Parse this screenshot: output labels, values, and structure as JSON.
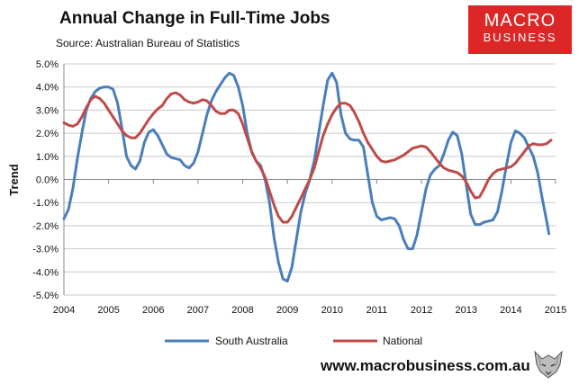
{
  "header": {
    "title": "Annual Change in Full-Time Jobs",
    "source": "Source: Australian Bureau of Statistics"
  },
  "logo": {
    "line1": "MACRO",
    "line2": "BUSINESS",
    "color": "#dd2727"
  },
  "footer": {
    "url": "www.macrobusiness.com.au",
    "mascot_icon": "wolf-icon"
  },
  "chart_data": {
    "type": "line",
    "title": "Annual Change in Full-Time Jobs",
    "xlabel": "",
    "ylabel": "Trend",
    "xlim": [
      2004,
      2015
    ],
    "ylim": [
      -5.0,
      5.0
    ],
    "x_ticks": [
      "2004",
      "2005",
      "2006",
      "2007",
      "2008",
      "2009",
      "2010",
      "2011",
      "2012",
      "2013",
      "2014",
      "2015"
    ],
    "y_ticks": [
      "5.0%",
      "4.0%",
      "3.0%",
      "2.0%",
      "1.0%",
      "0.0%",
      "-1.0%",
      "-2.0%",
      "-3.0%",
      "-4.0%",
      "-5.0%"
    ],
    "grid": "horizontal",
    "legend": "bottom",
    "series": [
      {
        "name": "South Australia",
        "color": "#4a7ebb",
        "points": [
          [
            2004.0,
            -1.7
          ],
          [
            2004.1,
            -1.3
          ],
          [
            2004.2,
            -0.4
          ],
          [
            2004.3,
            0.9
          ],
          [
            2004.4,
            2.0
          ],
          [
            2004.5,
            3.0
          ],
          [
            2004.6,
            3.5
          ],
          [
            2004.7,
            3.8
          ],
          [
            2004.8,
            3.95
          ],
          [
            2004.9,
            4.0
          ],
          [
            2005.0,
            4.0
          ],
          [
            2005.1,
            3.9
          ],
          [
            2005.2,
            3.3
          ],
          [
            2005.3,
            2.2
          ],
          [
            2005.4,
            1.0
          ],
          [
            2005.5,
            0.6
          ],
          [
            2005.6,
            0.45
          ],
          [
            2005.7,
            0.8
          ],
          [
            2005.8,
            1.6
          ],
          [
            2005.9,
            2.05
          ],
          [
            2006.0,
            2.15
          ],
          [
            2006.1,
            1.9
          ],
          [
            2006.2,
            1.5
          ],
          [
            2006.3,
            1.1
          ],
          [
            2006.4,
            0.95
          ],
          [
            2006.5,
            0.9
          ],
          [
            2006.6,
            0.85
          ],
          [
            2006.7,
            0.6
          ],
          [
            2006.8,
            0.5
          ],
          [
            2006.9,
            0.7
          ],
          [
            2007.0,
            1.2
          ],
          [
            2007.1,
            2.0
          ],
          [
            2007.2,
            2.8
          ],
          [
            2007.3,
            3.4
          ],
          [
            2007.4,
            3.8
          ],
          [
            2007.5,
            4.1
          ],
          [
            2007.6,
            4.4
          ],
          [
            2007.7,
            4.6
          ],
          [
            2007.8,
            4.5
          ],
          [
            2007.9,
            4.0
          ],
          [
            2008.0,
            3.2
          ],
          [
            2008.1,
            2.0
          ],
          [
            2008.2,
            1.2
          ],
          [
            2008.3,
            0.8
          ],
          [
            2008.4,
            0.6
          ],
          [
            2008.5,
            0.0
          ],
          [
            2008.6,
            -1.0
          ],
          [
            2008.7,
            -2.5
          ],
          [
            2008.8,
            -3.6
          ],
          [
            2008.9,
            -4.3
          ],
          [
            2009.0,
            -4.4
          ],
          [
            2009.1,
            -3.8
          ],
          [
            2009.2,
            -2.6
          ],
          [
            2009.3,
            -1.4
          ],
          [
            2009.4,
            -0.6
          ],
          [
            2009.5,
            0.0
          ],
          [
            2009.6,
            0.8
          ],
          [
            2009.7,
            2.0
          ],
          [
            2009.8,
            3.2
          ],
          [
            2009.9,
            4.3
          ],
          [
            2010.0,
            4.6
          ],
          [
            2010.1,
            4.2
          ],
          [
            2010.2,
            2.8
          ],
          [
            2010.3,
            2.0
          ],
          [
            2010.4,
            1.75
          ],
          [
            2010.5,
            1.7
          ],
          [
            2010.6,
            1.7
          ],
          [
            2010.7,
            1.4
          ],
          [
            2010.8,
            0.2
          ],
          [
            2010.9,
            -1.0
          ],
          [
            2011.0,
            -1.6
          ],
          [
            2011.1,
            -1.75
          ],
          [
            2011.2,
            -1.7
          ],
          [
            2011.3,
            -1.65
          ],
          [
            2011.4,
            -1.7
          ],
          [
            2011.5,
            -2.0
          ],
          [
            2011.6,
            -2.6
          ],
          [
            2011.7,
            -3.0
          ],
          [
            2011.8,
            -3.0
          ],
          [
            2011.9,
            -2.4
          ],
          [
            2012.0,
            -1.4
          ],
          [
            2012.1,
            -0.4
          ],
          [
            2012.2,
            0.2
          ],
          [
            2012.3,
            0.45
          ],
          [
            2012.4,
            0.6
          ],
          [
            2012.5,
            1.1
          ],
          [
            2012.6,
            1.7
          ],
          [
            2012.7,
            2.05
          ],
          [
            2012.8,
            1.9
          ],
          [
            2012.9,
            1.1
          ],
          [
            2013.0,
            -0.2
          ],
          [
            2013.1,
            -1.5
          ],
          [
            2013.2,
            -1.95
          ],
          [
            2013.3,
            -1.95
          ],
          [
            2013.4,
            -1.85
          ],
          [
            2013.5,
            -1.8
          ],
          [
            2013.6,
            -1.75
          ],
          [
            2013.7,
            -1.4
          ],
          [
            2013.8,
            -0.5
          ],
          [
            2013.9,
            0.6
          ],
          [
            2014.0,
            1.6
          ],
          [
            2014.1,
            2.1
          ],
          [
            2014.2,
            2.0
          ],
          [
            2014.3,
            1.8
          ],
          [
            2014.4,
            1.4
          ],
          [
            2014.5,
            1.0
          ],
          [
            2014.6,
            0.3
          ],
          [
            2014.7,
            -0.8
          ],
          [
            2014.8,
            -1.8
          ],
          [
            2014.85,
            -2.35
          ]
        ]
      },
      {
        "name": "National",
        "color": "#be4b48",
        "points": [
          [
            2004.0,
            2.45
          ],
          [
            2004.1,
            2.35
          ],
          [
            2004.2,
            2.3
          ],
          [
            2004.3,
            2.4
          ],
          [
            2004.4,
            2.7
          ],
          [
            2004.5,
            3.1
          ],
          [
            2004.6,
            3.45
          ],
          [
            2004.7,
            3.6
          ],
          [
            2004.8,
            3.5
          ],
          [
            2004.9,
            3.3
          ],
          [
            2005.0,
            3.0
          ],
          [
            2005.1,
            2.7
          ],
          [
            2005.2,
            2.4
          ],
          [
            2005.3,
            2.1
          ],
          [
            2005.4,
            1.9
          ],
          [
            2005.5,
            1.8
          ],
          [
            2005.6,
            1.8
          ],
          [
            2005.7,
            2.0
          ],
          [
            2005.8,
            2.3
          ],
          [
            2005.9,
            2.6
          ],
          [
            2006.0,
            2.85
          ],
          [
            2006.1,
            3.05
          ],
          [
            2006.2,
            3.2
          ],
          [
            2006.3,
            3.5
          ],
          [
            2006.4,
            3.7
          ],
          [
            2006.5,
            3.75
          ],
          [
            2006.6,
            3.65
          ],
          [
            2006.7,
            3.45
          ],
          [
            2006.8,
            3.35
          ],
          [
            2006.9,
            3.3
          ],
          [
            2007.0,
            3.35
          ],
          [
            2007.1,
            3.45
          ],
          [
            2007.2,
            3.4
          ],
          [
            2007.3,
            3.2
          ],
          [
            2007.4,
            2.95
          ],
          [
            2007.5,
            2.85
          ],
          [
            2007.6,
            2.85
          ],
          [
            2007.7,
            3.0
          ],
          [
            2007.8,
            3.0
          ],
          [
            2007.9,
            2.85
          ],
          [
            2008.0,
            2.4
          ],
          [
            2008.1,
            1.8
          ],
          [
            2008.2,
            1.2
          ],
          [
            2008.3,
            0.8
          ],
          [
            2008.4,
            0.5
          ],
          [
            2008.5,
            0.1
          ],
          [
            2008.6,
            -0.5
          ],
          [
            2008.7,
            -1.1
          ],
          [
            2008.8,
            -1.6
          ],
          [
            2008.9,
            -1.85
          ],
          [
            2009.0,
            -1.85
          ],
          [
            2009.1,
            -1.6
          ],
          [
            2009.2,
            -1.2
          ],
          [
            2009.3,
            -0.8
          ],
          [
            2009.4,
            -0.4
          ],
          [
            2009.5,
            0.0
          ],
          [
            2009.6,
            0.5
          ],
          [
            2009.7,
            1.2
          ],
          [
            2009.8,
            1.9
          ],
          [
            2009.9,
            2.4
          ],
          [
            2010.0,
            2.8
          ],
          [
            2010.1,
            3.1
          ],
          [
            2010.2,
            3.3
          ],
          [
            2010.3,
            3.3
          ],
          [
            2010.4,
            3.2
          ],
          [
            2010.5,
            2.9
          ],
          [
            2010.6,
            2.5
          ],
          [
            2010.7,
            2.0
          ],
          [
            2010.8,
            1.6
          ],
          [
            2010.9,
            1.3
          ],
          [
            2011.0,
            1.0
          ],
          [
            2011.1,
            0.8
          ],
          [
            2011.2,
            0.75
          ],
          [
            2011.3,
            0.8
          ],
          [
            2011.4,
            0.85
          ],
          [
            2011.5,
            0.95
          ],
          [
            2011.6,
            1.05
          ],
          [
            2011.7,
            1.2
          ],
          [
            2011.8,
            1.35
          ],
          [
            2011.9,
            1.4
          ],
          [
            2012.0,
            1.45
          ],
          [
            2012.1,
            1.4
          ],
          [
            2012.2,
            1.2
          ],
          [
            2012.3,
            0.95
          ],
          [
            2012.4,
            0.7
          ],
          [
            2012.5,
            0.5
          ],
          [
            2012.6,
            0.4
          ],
          [
            2012.7,
            0.35
          ],
          [
            2012.8,
            0.3
          ],
          [
            2012.9,
            0.15
          ],
          [
            2013.0,
            -0.1
          ],
          [
            2013.1,
            -0.5
          ],
          [
            2013.2,
            -0.8
          ],
          [
            2013.3,
            -0.75
          ],
          [
            2013.4,
            -0.4
          ],
          [
            2013.5,
            0.0
          ],
          [
            2013.6,
            0.25
          ],
          [
            2013.7,
            0.4
          ],
          [
            2013.8,
            0.45
          ],
          [
            2013.9,
            0.5
          ],
          [
            2014.0,
            0.55
          ],
          [
            2014.1,
            0.7
          ],
          [
            2014.2,
            0.95
          ],
          [
            2014.3,
            1.2
          ],
          [
            2014.4,
            1.45
          ],
          [
            2014.5,
            1.55
          ],
          [
            2014.6,
            1.5
          ],
          [
            2014.7,
            1.5
          ],
          [
            2014.8,
            1.55
          ],
          [
            2014.9,
            1.7
          ]
        ]
      }
    ]
  }
}
